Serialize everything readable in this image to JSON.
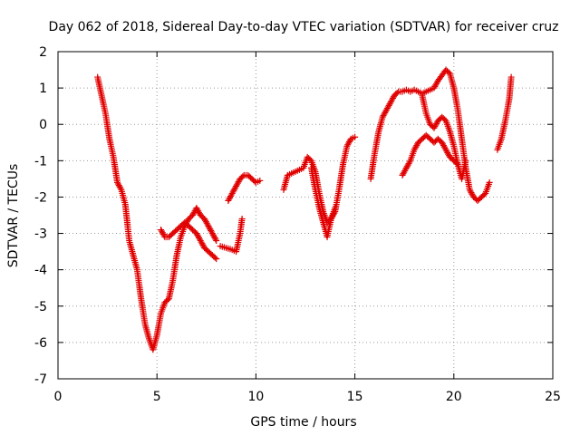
{
  "chart_data": {
    "type": "scatter",
    "title": "Day 062 of 2018, Sidereal Day-to-day VTEC variation (SDTVAR) for receiver cruz",
    "xlabel": "GPS time / hours",
    "ylabel": "SDTVAR / TECUs",
    "xlim": [
      0,
      25
    ],
    "ylim": [
      -7,
      2
    ],
    "x_ticks": [
      "0",
      "5",
      "10",
      "15",
      "20",
      "25"
    ],
    "y_ticks": [
      "2",
      "1",
      "0",
      "-1",
      "-2",
      "-3",
      "-4",
      "-5",
      "-6",
      "-7"
    ],
    "grid": true,
    "legend": "none",
    "marker": "+",
    "color": "#e00000",
    "series": [
      {
        "segments": [
          [
            [
              2.0,
              1.3
            ],
            [
              2.2,
              0.8
            ],
            [
              2.4,
              0.3
            ],
            [
              2.6,
              -0.4
            ],
            [
              2.8,
              -0.9
            ],
            [
              3.0,
              -1.6
            ],
            [
              3.2,
              -1.8
            ],
            [
              3.4,
              -2.2
            ],
            [
              3.6,
              -3.2
            ],
            [
              3.8,
              -3.6
            ],
            [
              4.0,
              -4.0
            ],
            [
              4.2,
              -4.8
            ],
            [
              4.4,
              -5.5
            ],
            [
              4.6,
              -5.9
            ],
            [
              4.8,
              -6.2
            ],
            [
              5.0,
              -5.8
            ],
            [
              5.2,
              -5.2
            ],
            [
              5.4,
              -4.9
            ],
            [
              5.6,
              -4.8
            ],
            [
              5.8,
              -4.3
            ],
            [
              6.0,
              -3.6
            ],
            [
              6.2,
              -3.1
            ],
            [
              6.4,
              -2.8
            ],
            [
              6.6,
              -2.6
            ],
            [
              6.8,
              -2.5
            ],
            [
              7.0,
              -2.3
            ],
            [
              7.2,
              -2.5
            ],
            [
              7.4,
              -2.6
            ],
            [
              7.6,
              -2.8
            ],
            [
              7.8,
              -3.0
            ],
            [
              8.0,
              -3.2
            ]
          ],
          [
            [
              5.2,
              -2.9
            ],
            [
              5.4,
              -3.1
            ],
            [
              5.6,
              -3.1
            ],
            [
              5.8,
              -3.0
            ],
            [
              6.0,
              -2.9
            ],
            [
              6.2,
              -2.8
            ],
            [
              6.4,
              -2.7
            ],
            [
              6.6,
              -2.8
            ],
            [
              6.8,
              -2.9
            ],
            [
              7.0,
              -3.0
            ],
            [
              7.2,
              -3.2
            ],
            [
              7.4,
              -3.4
            ],
            [
              7.6,
              -3.5
            ],
            [
              7.8,
              -3.6
            ],
            [
              8.0,
              -3.7
            ]
          ],
          [
            [
              8.2,
              -3.35
            ],
            [
              8.5,
              -3.4
            ],
            [
              8.8,
              -3.45
            ],
            [
              9.0,
              -3.5
            ],
            [
              9.2,
              -3.0
            ],
            [
              9.3,
              -2.6
            ]
          ],
          [
            [
              8.6,
              -2.1
            ],
            [
              8.8,
              -1.9
            ],
            [
              9.0,
              -1.7
            ],
            [
              9.2,
              -1.5
            ],
            [
              9.4,
              -1.4
            ],
            [
              9.6,
              -1.4
            ],
            [
              9.8,
              -1.5
            ],
            [
              10.0,
              -1.6
            ],
            [
              10.2,
              -1.55
            ]
          ],
          [
            [
              11.4,
              -1.8
            ],
            [
              11.6,
              -1.4
            ],
            [
              11.8,
              -1.35
            ],
            [
              12.0,
              -1.3
            ],
            [
              12.2,
              -1.25
            ],
            [
              12.4,
              -1.2
            ],
            [
              12.6,
              -0.9
            ],
            [
              12.8,
              -1.0
            ],
            [
              13.0,
              -1.3
            ],
            [
              13.2,
              -1.9
            ],
            [
              13.4,
              -2.4
            ],
            [
              13.6,
              -2.7
            ],
            [
              13.8,
              -2.6
            ],
            [
              14.0,
              -2.3
            ]
          ],
          [
            [
              12.8,
              -1.2
            ],
            [
              13.0,
              -1.8
            ],
            [
              13.2,
              -2.3
            ],
            [
              13.4,
              -2.7
            ],
            [
              13.6,
              -3.1
            ],
            [
              13.8,
              -2.6
            ],
            [
              14.0,
              -2.4
            ],
            [
              14.2,
              -1.8
            ],
            [
              14.4,
              -1.1
            ],
            [
              14.6,
              -0.6
            ],
            [
              14.8,
              -0.4
            ],
            [
              15.0,
              -0.35
            ]
          ],
          [
            [
              15.8,
              -1.5
            ],
            [
              16.0,
              -0.8
            ],
            [
              16.2,
              -0.2
            ],
            [
              16.4,
              0.2
            ],
            [
              16.6,
              0.4
            ],
            [
              16.8,
              0.6
            ],
            [
              17.0,
              0.8
            ],
            [
              17.2,
              0.9
            ],
            [
              17.4,
              0.9
            ],
            [
              17.6,
              0.95
            ],
            [
              17.8,
              0.9
            ],
            [
              18.0,
              0.95
            ],
            [
              18.2,
              0.9
            ],
            [
              18.4,
              0.85
            ],
            [
              18.6,
              0.9
            ],
            [
              18.8,
              0.95
            ],
            [
              19.0,
              1.0
            ],
            [
              19.2,
              1.2
            ],
            [
              19.4,
              1.35
            ],
            [
              19.6,
              1.5
            ],
            [
              19.8,
              1.4
            ],
            [
              20.0,
              1.0
            ],
            [
              20.2,
              0.4
            ],
            [
              20.4,
              -0.4
            ],
            [
              20.6,
              -1.2
            ],
            [
              20.8,
              -1.8
            ],
            [
              21.0,
              -2.0
            ],
            [
              21.2,
              -2.1
            ],
            [
              21.4,
              -2.0
            ],
            [
              21.6,
              -1.9
            ],
            [
              21.8,
              -1.6
            ]
          ],
          [
            [
              18.4,
              0.8
            ],
            [
              18.6,
              0.3
            ],
            [
              18.8,
              0.0
            ],
            [
              19.0,
              -0.1
            ],
            [
              19.2,
              0.1
            ],
            [
              19.4,
              0.2
            ],
            [
              19.6,
              0.1
            ],
            [
              19.8,
              -0.2
            ],
            [
              20.0,
              -0.6
            ],
            [
              20.2,
              -1.1
            ],
            [
              20.4,
              -1.5
            ],
            [
              20.6,
              -1.0
            ]
          ],
          [
            [
              17.4,
              -1.4
            ],
            [
              17.6,
              -1.2
            ],
            [
              17.8,
              -1.0
            ],
            [
              18.0,
              -0.7
            ],
            [
              18.2,
              -0.5
            ],
            [
              18.4,
              -0.4
            ],
            [
              18.6,
              -0.3
            ],
            [
              18.8,
              -0.4
            ],
            [
              19.0,
              -0.5
            ],
            [
              19.2,
              -0.4
            ],
            [
              19.4,
              -0.5
            ],
            [
              19.6,
              -0.7
            ],
            [
              19.8,
              -0.9
            ],
            [
              20.0,
              -1.0
            ],
            [
              20.2,
              -1.1
            ]
          ],
          [
            [
              22.2,
              -0.7
            ],
            [
              22.4,
              -0.4
            ],
            [
              22.6,
              0.1
            ],
            [
              22.8,
              0.7
            ],
            [
              22.9,
              1.3
            ]
          ]
        ]
      }
    ]
  }
}
